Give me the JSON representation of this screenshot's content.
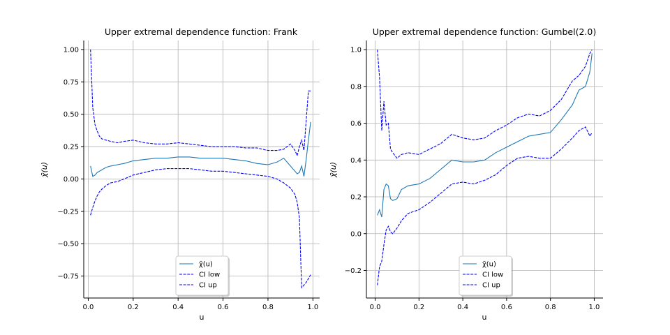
{
  "chart_data": [
    {
      "type": "line",
      "title": "Upper extremal dependence function: Frank",
      "xlabel": "u",
      "ylabel": "χ̄(u)",
      "xlim": [
        -0.02,
        1.03
      ],
      "ylim": [
        -0.92,
        1.07
      ],
      "xticks": [
        0.0,
        0.2,
        0.4,
        0.6,
        0.8,
        1.0
      ],
      "xtick_labels": [
        "0.0",
        "0.2",
        "0.4",
        "0.6",
        "0.8",
        "1.0"
      ],
      "yticks": [
        -0.75,
        -0.5,
        -0.25,
        0.0,
        0.25,
        0.5,
        0.75,
        1.0
      ],
      "ytick_labels": [
        "−0.75",
        "−0.50",
        "−0.25",
        "0.00",
        "0.25",
        "0.50",
        "0.75",
        "1.00"
      ],
      "grid": true,
      "legend_position": "bottom-center",
      "x": [
        0.01,
        0.02,
        0.03,
        0.04,
        0.05,
        0.06,
        0.08,
        0.1,
        0.13,
        0.16,
        0.2,
        0.25,
        0.3,
        0.35,
        0.4,
        0.45,
        0.5,
        0.55,
        0.6,
        0.65,
        0.7,
        0.75,
        0.8,
        0.84,
        0.87,
        0.9,
        0.92,
        0.93,
        0.94,
        0.95,
        0.96,
        0.97,
        0.98,
        0.99
      ],
      "series": [
        {
          "name": "χ̄(u)",
          "color": "#1f77b4",
          "dash": "solid",
          "values": [
            0.1,
            0.02,
            0.03,
            0.05,
            0.06,
            0.07,
            0.09,
            0.1,
            0.11,
            0.12,
            0.14,
            0.15,
            0.16,
            0.16,
            0.17,
            0.17,
            0.16,
            0.16,
            0.16,
            0.15,
            0.14,
            0.12,
            0.11,
            0.13,
            0.16,
            0.1,
            0.06,
            0.04,
            0.05,
            0.1,
            0.02,
            0.15,
            0.3,
            0.44
          ]
        },
        {
          "name": "CI low",
          "color": "#0000ff",
          "dash": "dashed",
          "values": [
            -0.28,
            -0.22,
            -0.17,
            -0.13,
            -0.1,
            -0.08,
            -0.05,
            -0.03,
            -0.02,
            0.0,
            0.03,
            0.05,
            0.07,
            0.08,
            0.08,
            0.08,
            0.07,
            0.06,
            0.06,
            0.05,
            0.04,
            0.03,
            0.02,
            0.0,
            -0.03,
            -0.07,
            -0.12,
            -0.18,
            -0.3,
            -0.84,
            -0.82,
            -0.8,
            -0.77,
            -0.74
          ]
        },
        {
          "name": "CI up",
          "color": "#0000ff",
          "dash": "dashed",
          "values": [
            1.0,
            0.55,
            0.42,
            0.37,
            0.33,
            0.31,
            0.3,
            0.29,
            0.28,
            0.29,
            0.3,
            0.28,
            0.27,
            0.27,
            0.28,
            0.27,
            0.26,
            0.25,
            0.25,
            0.25,
            0.24,
            0.24,
            0.22,
            0.22,
            0.23,
            0.27,
            0.22,
            0.18,
            0.25,
            0.3,
            0.22,
            0.45,
            0.68,
            0.68
          ]
        }
      ]
    },
    {
      "type": "line",
      "title": "Upper extremal dependence function: Gumbel(2.0)",
      "xlabel": "u",
      "ylabel": "χ̄(u)",
      "xlim": [
        -0.04,
        1.04
      ],
      "ylim": [
        -0.35,
        1.05
      ],
      "xticks": [
        0.0,
        0.2,
        0.4,
        0.6,
        0.8,
        1.0
      ],
      "xtick_labels": [
        "0.0",
        "0.2",
        "0.4",
        "0.6",
        "0.8",
        "1.0"
      ],
      "yticks": [
        -0.2,
        0.0,
        0.2,
        0.4,
        0.6,
        0.8,
        1.0
      ],
      "ytick_labels": [
        "−0.2",
        "0.0",
        "0.2",
        "0.4",
        "0.6",
        "0.8",
        "1.0"
      ],
      "grid": true,
      "legend_position": "bottom-center",
      "x": [
        0.01,
        0.02,
        0.03,
        0.04,
        0.05,
        0.06,
        0.07,
        0.08,
        0.1,
        0.12,
        0.15,
        0.2,
        0.25,
        0.3,
        0.35,
        0.4,
        0.45,
        0.5,
        0.55,
        0.6,
        0.65,
        0.7,
        0.75,
        0.8,
        0.85,
        0.9,
        0.93,
        0.96,
        0.98,
        0.99
      ],
      "series": [
        {
          "name": "χ̄(u)",
          "color": "#1f77b4",
          "dash": "solid",
          "values": [
            0.1,
            0.13,
            0.09,
            0.24,
            0.27,
            0.26,
            0.19,
            0.18,
            0.19,
            0.24,
            0.26,
            0.27,
            0.3,
            0.35,
            0.4,
            0.39,
            0.39,
            0.4,
            0.44,
            0.47,
            0.5,
            0.53,
            0.54,
            0.55,
            0.62,
            0.7,
            0.78,
            0.8,
            0.88,
            0.98
          ]
        },
        {
          "name": "CI low",
          "color": "#0000ff",
          "dash": "dashed",
          "values": [
            -0.28,
            -0.18,
            -0.15,
            -0.06,
            0.02,
            0.04,
            0.01,
            0.0,
            0.03,
            0.07,
            0.11,
            0.13,
            0.17,
            0.22,
            0.27,
            0.28,
            0.27,
            0.29,
            0.32,
            0.37,
            0.41,
            0.42,
            0.41,
            0.41,
            0.46,
            0.52,
            0.56,
            0.58,
            0.53,
            0.55
          ]
        },
        {
          "name": "CI up",
          "color": "#0000ff",
          "dash": "dashed",
          "values": [
            1.0,
            0.85,
            0.56,
            0.72,
            0.59,
            0.6,
            0.46,
            0.44,
            0.41,
            0.43,
            0.44,
            0.43,
            0.46,
            0.49,
            0.54,
            0.52,
            0.51,
            0.52,
            0.56,
            0.59,
            0.63,
            0.65,
            0.64,
            0.67,
            0.73,
            0.83,
            0.86,
            0.91,
            0.98,
            1.0
          ]
        }
      ]
    }
  ]
}
